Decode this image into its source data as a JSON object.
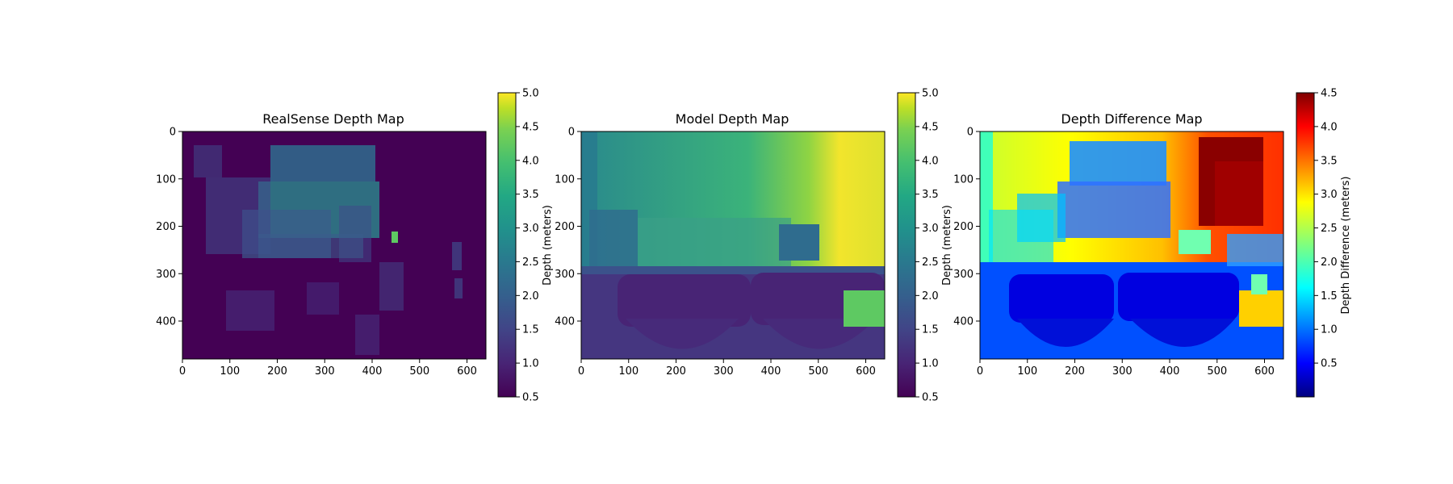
{
  "chart_data": [
    {
      "type": "heatmap",
      "title": "RealSense Depth Map",
      "colormap": "viridis",
      "image_size": {
        "width": 640,
        "height": 480
      },
      "xlim": [
        0,
        640
      ],
      "ylim": [
        480,
        0
      ],
      "xticks": [
        0,
        100,
        200,
        300,
        400,
        500,
        600
      ],
      "yticks": [
        0,
        100,
        200,
        300,
        400
      ],
      "xtick_labels": [
        "0",
        "100",
        "200",
        "300",
        "400",
        "500",
        "600"
      ],
      "ytick_labels": [
        "0",
        "100",
        "200",
        "300",
        "400"
      ],
      "colorbar": {
        "label": "Depth (meters)",
        "range": [
          0.5,
          5.0
        ],
        "ticks": [
          0.5,
          1.0,
          1.5,
          2.0,
          2.5,
          3.0,
          3.5,
          4.0,
          4.5,
          5.0
        ],
        "tick_labels": [
          "0.5",
          "1.0",
          "1.5",
          "2.0",
          "2.5",
          "3.0",
          "3.5",
          "4.0",
          "4.5",
          "5.0"
        ]
      }
    },
    {
      "type": "heatmap",
      "title": "Model Depth Map",
      "colormap": "viridis",
      "image_size": {
        "width": 640,
        "height": 480
      },
      "xlim": [
        0,
        640
      ],
      "ylim": [
        480,
        0
      ],
      "xticks": [
        0,
        100,
        200,
        300,
        400,
        500,
        600
      ],
      "yticks": [
        0,
        100,
        200,
        300,
        400
      ],
      "xtick_labels": [
        "0",
        "100",
        "200",
        "300",
        "400",
        "500",
        "600"
      ],
      "ytick_labels": [
        "0",
        "100",
        "200",
        "300",
        "400"
      ],
      "colorbar": {
        "label": "Depth (meters)",
        "range": [
          0.5,
          5.0
        ],
        "ticks": [
          0.5,
          1.0,
          1.5,
          2.0,
          2.5,
          3.0,
          3.5,
          4.0,
          4.5,
          5.0
        ],
        "tick_labels": [
          "0.5",
          "1.0",
          "1.5",
          "2.0",
          "2.5",
          "3.0",
          "3.5",
          "4.0",
          "4.5",
          "5.0"
        ]
      }
    },
    {
      "type": "heatmap",
      "title": "Depth Difference Map",
      "colormap": "jet",
      "image_size": {
        "width": 640,
        "height": 480
      },
      "xlim": [
        0,
        640
      ],
      "ylim": [
        480,
        0
      ],
      "xticks": [
        0,
        100,
        200,
        300,
        400,
        500,
        600
      ],
      "yticks": [
        0,
        100,
        200,
        300,
        400
      ],
      "xtick_labels": [
        "0",
        "100",
        "200",
        "300",
        "400",
        "500",
        "600"
      ],
      "ytick_labels": [
        "0",
        "100",
        "200",
        "300",
        "400"
      ],
      "colorbar": {
        "label": "Depth Difference (meters)",
        "range": [
          0.0,
          4.5
        ],
        "ticks": [
          0.5,
          1.0,
          1.5,
          2.0,
          2.5,
          3.0,
          3.5,
          4.0,
          4.5
        ],
        "tick_labels": [
          "0.5",
          "1.0",
          "1.5",
          "2.0",
          "2.5",
          "3.0",
          "3.5",
          "4.0",
          "4.5"
        ]
      }
    }
  ]
}
